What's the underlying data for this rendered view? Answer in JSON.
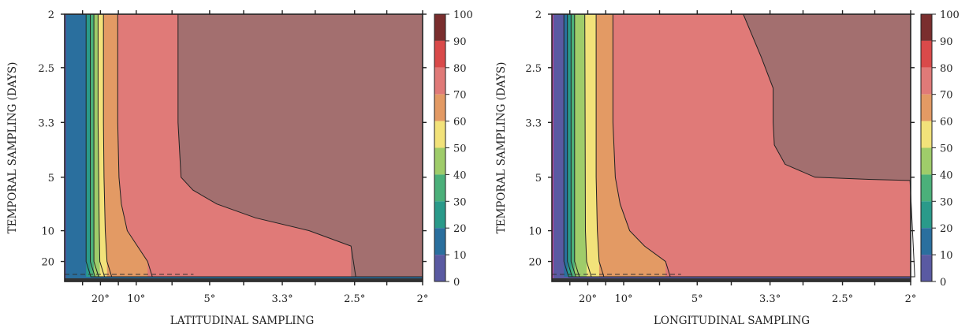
{
  "chart_data": [
    {
      "type": "heatmap",
      "subtype": "filled-contour",
      "title": "",
      "xlabel": "LATITUDINAL SAMPLING",
      "ylabel": "TEMPORAL SAMPLING (DAYS)",
      "x_ticks": [
        "20°",
        "10°",
        "5°",
        "3.3°",
        "2.5°",
        "2°"
      ],
      "y_ticks": [
        "2",
        "2.5",
        "3.3",
        "5",
        "10",
        "20"
      ],
      "colorbar": {
        "ticks": [
          "100",
          "90",
          "80",
          "70",
          "60",
          "50",
          "40",
          "30",
          "20",
          "10",
          "0"
        ],
        "colors": [
          "#c2489c",
          "#5a5aa2",
          "#2a6f9e",
          "#2a9a8a",
          "#4bb07a",
          "#9fcc6a",
          "#f2e27a",
          "#e39a64",
          "#e07a78",
          "#d94a4a",
          "#7a2e2e"
        ]
      },
      "contours": [
        {
          "level": 30,
          "x": [
            0.36,
            0.36
          ],
          "y": [
            2,
            20
          ]
        },
        {
          "level": 40,
          "x": [
            0.43,
            0.43
          ],
          "y": [
            2,
            20
          ]
        },
        {
          "level": 50,
          "x": [
            0.49,
            0.49
          ],
          "y": [
            2,
            20
          ]
        },
        {
          "level": 60,
          "x": [
            0.56,
            0.56,
            0.58,
            0.59
          ],
          "y": [
            2,
            3.3,
            10,
            20
          ]
        },
        {
          "level": 70,
          "x": [
            0.65,
            0.65,
            0.66,
            0.68,
            0.71
          ],
          "y": [
            2,
            3.3,
            5,
            10,
            20
          ]
        },
        {
          "level": 80,
          "x": [
            0.89,
            0.89,
            0.91,
            0.95,
            1.05,
            1.22,
            1.39
          ],
          "y": [
            2,
            3.3,
            5,
            7.5,
            10,
            15,
            20
          ]
        },
        {
          "level": 90,
          "x": [
            1.9,
            1.9,
            1.95,
            2.15,
            2.55,
            3.2,
            4.1,
            4.8
          ],
          "y": [
            2,
            3.3,
            5,
            6.2,
            7.5,
            8.8,
            10,
            15
          ]
        }
      ],
      "min_sampling_line": {
        "y": 27
      }
    },
    {
      "type": "heatmap",
      "subtype": "filled-contour",
      "title": "",
      "xlabel": "LONGITUDINAL SAMPLING",
      "ylabel": "TEMPORAL SAMPLING (DAYS)",
      "x_ticks": [
        "20°",
        "10°",
        "5°",
        "3.3°",
        "2.5°",
        "2°"
      ],
      "y_ticks": [
        "2",
        "2.5",
        "3.3",
        "5",
        "10",
        "20"
      ],
      "colorbar": {
        "ticks": [
          "100",
          "90",
          "80",
          "70",
          "60",
          "50",
          "40",
          "30",
          "20",
          "10",
          "0"
        ],
        "colors": [
          "#c2489c",
          "#5a5aa2",
          "#2a6f9e",
          "#2a9a8a",
          "#4bb07a",
          "#9fcc6a",
          "#f2e27a",
          "#e39a64",
          "#e07a78",
          "#d94a4a",
          "#7a2e2e"
        ]
      },
      "contours": [
        {
          "level": 20,
          "x": [
            0.2,
            0.2
          ],
          "y": [
            2,
            20
          ]
        },
        {
          "level": 30,
          "x": [
            0.26,
            0.26
          ],
          "y": [
            2,
            20
          ]
        },
        {
          "level": 40,
          "x": [
            0.32,
            0.32
          ],
          "y": [
            2,
            20
          ]
        },
        {
          "level": 50,
          "x": [
            0.38,
            0.38
          ],
          "y": [
            2,
            20
          ]
        },
        {
          "level": 60,
          "x": [
            0.55,
            0.56,
            0.58
          ],
          "y": [
            2,
            10,
            20
          ]
        },
        {
          "level": 70,
          "x": [
            0.74,
            0.74,
            0.76,
            0.79
          ],
          "y": [
            2,
            5,
            10,
            20
          ]
        },
        {
          "level": 80,
          "x": [
            1.02,
            1.02,
            1.06,
            1.14,
            1.3,
            1.55,
            1.9
          ],
          "y": [
            2,
            3.3,
            5,
            7.5,
            10,
            15,
            20
          ]
        },
        {
          "level": 90,
          "x": [
            3.2,
            3.5,
            3.7,
            3.7,
            3.72,
            3.9,
            4.4,
            5.3,
            5.99
          ],
          "y": [
            2,
            2.4,
            2.8,
            3.3,
            4.0,
            4.6,
            5.0,
            5.2,
            5.3
          ]
        }
      ],
      "min_sampling_line": {
        "y": 27
      }
    }
  ]
}
